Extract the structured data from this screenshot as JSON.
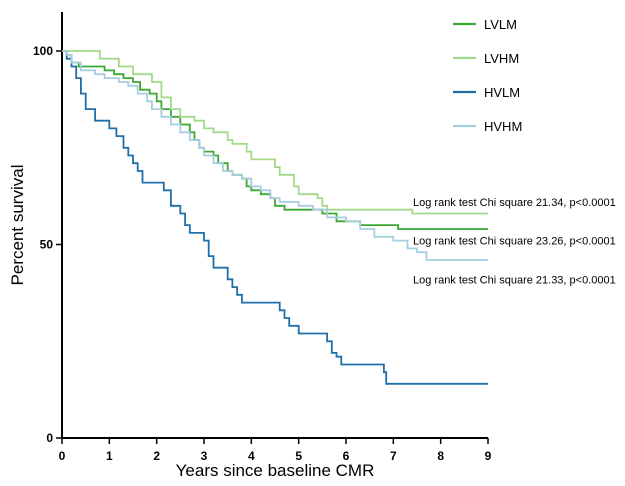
{
  "chart_data": {
    "type": "line",
    "step": true,
    "title": "",
    "xlabel": "Years since baseline CMR",
    "ylabel": "Percent survival",
    "xlim": [
      0,
      9
    ],
    "ylim": [
      0,
      100
    ],
    "x_ticks": [
      0,
      1,
      2,
      3,
      4,
      5,
      6,
      7,
      8,
      9
    ],
    "y_ticks": [
      0,
      50,
      100
    ],
    "grid": false,
    "legend_position": "top-right",
    "series": [
      {
        "name": "LVLM",
        "color": "#3aa832",
        "points": [
          [
            0,
            100
          ],
          [
            0.1,
            99
          ],
          [
            0.2,
            97
          ],
          [
            0.35,
            96
          ],
          [
            0.9,
            95
          ],
          [
            1.1,
            94
          ],
          [
            1.3,
            93
          ],
          [
            1.5,
            92
          ],
          [
            1.65,
            90
          ],
          [
            1.85,
            89
          ],
          [
            2.0,
            87
          ],
          [
            2.1,
            85
          ],
          [
            2.3,
            83
          ],
          [
            2.5,
            81
          ],
          [
            2.7,
            79
          ],
          [
            2.8,
            77
          ],
          [
            2.9,
            75
          ],
          [
            3.0,
            74
          ],
          [
            3.2,
            73
          ],
          [
            3.3,
            71
          ],
          [
            3.5,
            69
          ],
          [
            3.6,
            68
          ],
          [
            3.8,
            67
          ],
          [
            3.9,
            65
          ],
          [
            4.0,
            64
          ],
          [
            4.2,
            63
          ],
          [
            4.4,
            62
          ],
          [
            4.5,
            60
          ],
          [
            4.7,
            59
          ],
          [
            5.5,
            58
          ],
          [
            5.8,
            56
          ],
          [
            6.3,
            55
          ],
          [
            7.1,
            54
          ],
          [
            9,
            54
          ]
        ]
      },
      {
        "name": "LVHM",
        "color": "#a3d98a",
        "points": [
          [
            0,
            100
          ],
          [
            0.8,
            98
          ],
          [
            1.2,
            96
          ],
          [
            1.5,
            94
          ],
          [
            1.9,
            92
          ],
          [
            2.1,
            88
          ],
          [
            2.3,
            85
          ],
          [
            2.5,
            83
          ],
          [
            2.8,
            82
          ],
          [
            3.0,
            80
          ],
          [
            3.2,
            79
          ],
          [
            3.5,
            77
          ],
          [
            3.6,
            76
          ],
          [
            3.9,
            74
          ],
          [
            4.0,
            72
          ],
          [
            4.5,
            70
          ],
          [
            4.6,
            68
          ],
          [
            4.9,
            65
          ],
          [
            5.0,
            63
          ],
          [
            5.4,
            62
          ],
          [
            5.5,
            60
          ],
          [
            5.6,
            59
          ],
          [
            6.0,
            59
          ],
          [
            7.4,
            58
          ],
          [
            9,
            58
          ]
        ]
      },
      {
        "name": "HVLM",
        "color": "#1f6fa8",
        "points": [
          [
            0,
            100
          ],
          [
            0.1,
            98
          ],
          [
            0.2,
            96
          ],
          [
            0.3,
            93
          ],
          [
            0.4,
            89
          ],
          [
            0.5,
            85
          ],
          [
            0.7,
            82
          ],
          [
            1.0,
            80
          ],
          [
            1.15,
            78
          ],
          [
            1.3,
            75
          ],
          [
            1.4,
            73
          ],
          [
            1.5,
            71
          ],
          [
            1.6,
            69
          ],
          [
            1.7,
            66
          ],
          [
            2.15,
            64
          ],
          [
            2.3,
            60
          ],
          [
            2.5,
            58
          ],
          [
            2.6,
            55
          ],
          [
            2.7,
            53
          ],
          [
            3.0,
            51
          ],
          [
            3.1,
            47
          ],
          [
            3.2,
            44
          ],
          [
            3.5,
            41
          ],
          [
            3.6,
            39
          ],
          [
            3.7,
            37
          ],
          [
            3.8,
            35
          ],
          [
            4.6,
            33
          ],
          [
            4.7,
            31
          ],
          [
            4.8,
            29
          ],
          [
            5.0,
            27
          ],
          [
            5.6,
            25
          ],
          [
            5.7,
            22
          ],
          [
            5.8,
            21
          ],
          [
            5.9,
            19
          ],
          [
            6.8,
            17
          ],
          [
            6.85,
            14
          ],
          [
            9,
            14
          ]
        ]
      },
      {
        "name": "HVHM",
        "color": "#a7cde0",
        "points": [
          [
            0,
            100
          ],
          [
            0.1,
            99
          ],
          [
            0.2,
            97
          ],
          [
            0.4,
            95
          ],
          [
            0.7,
            94
          ],
          [
            0.9,
            93
          ],
          [
            1.2,
            92
          ],
          [
            1.4,
            91
          ],
          [
            1.6,
            89
          ],
          [
            1.8,
            87
          ],
          [
            1.9,
            85
          ],
          [
            2.1,
            83
          ],
          [
            2.3,
            81
          ],
          [
            2.5,
            79
          ],
          [
            2.7,
            77
          ],
          [
            2.9,
            75
          ],
          [
            3.0,
            73
          ],
          [
            3.2,
            71
          ],
          [
            3.4,
            69
          ],
          [
            3.6,
            68
          ],
          [
            3.8,
            67
          ],
          [
            4.0,
            65
          ],
          [
            4.2,
            64
          ],
          [
            4.4,
            62
          ],
          [
            4.6,
            61
          ],
          [
            5.0,
            60
          ],
          [
            5.3,
            59
          ],
          [
            5.6,
            57
          ],
          [
            6.0,
            56
          ],
          [
            6.3,
            54
          ],
          [
            6.6,
            52
          ],
          [
            7.0,
            51
          ],
          [
            7.3,
            49
          ],
          [
            7.5,
            48
          ],
          [
            7.7,
            46
          ],
          [
            9,
            46
          ]
        ]
      }
    ],
    "annotations": [
      {
        "text": "Log rank test Chi square 21.34, p<0.0001",
        "y": 61
      },
      {
        "text": "Log rank test Chi square 23.26, p<0.0001",
        "y": 51
      },
      {
        "text": "Log rank test Chi square 21.33, p<0.0001",
        "y": 41
      }
    ]
  }
}
